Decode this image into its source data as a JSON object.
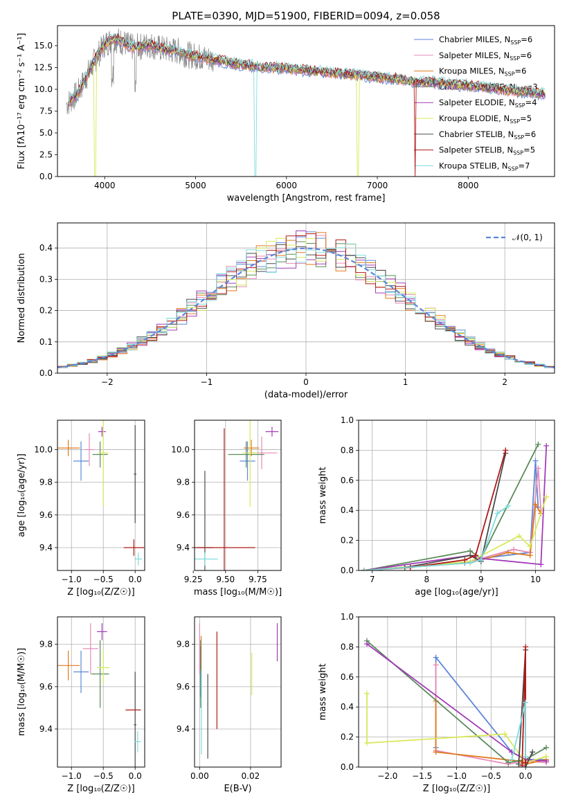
{
  "figure": {
    "title": "PLATE=0390, MJD=51900, FIBERID=0094, z=0.058"
  },
  "series_styles": [
    {
      "name": "Chabrier MILES",
      "nssp": "6",
      "color": "#5b86d8"
    },
    {
      "name": "Salpeter MILES",
      "nssp": "6",
      "color": "#e68ab8"
    },
    {
      "name": "Kroupa MILES",
      "nssp": "6",
      "color": "#e07a1c"
    },
    {
      "name": "Chabrier ELODIE",
      "nssp": "3",
      "color": "#5a8a5a"
    },
    {
      "name": "Salpeter ELODIE",
      "nssp": "4",
      "color": "#a23ab8"
    },
    {
      "name": "Kroupa ELODIE",
      "nssp": "5",
      "color": "#d8e85a"
    },
    {
      "name": "Chabrier STELIB",
      "nssp": "6",
      "color": "#4a4a4a"
    },
    {
      "name": "Salpeter STELIB",
      "nssp": "5",
      "color": "#b01818"
    },
    {
      "name": "Kroupa STELIB",
      "nssp": "7",
      "color": "#7fdcdc"
    }
  ],
  "chart_data": [
    {
      "id": "spectrum",
      "type": "line",
      "title": "PLATE=0390, MJD=51900, FIBERID=0094, z=0.058",
      "xlabel": "wavelength [Angstrom, rest frame]",
      "ylabel": "Flux [fλ10⁻¹⁷ erg cm⁻² s⁻¹ A⁻¹]",
      "xlim": [
        3480,
        8950
      ],
      "ylim": [
        0,
        17.3
      ],
      "xticks": [
        "4000",
        "5000",
        "6000",
        "7000",
        "8000"
      ],
      "yticks": [
        "0.0",
        "2.5",
        "5.0",
        "7.5",
        "10.0",
        "12.5",
        "15.0"
      ],
      "grid": false,
      "legend": "top-right",
      "data_continuum": {
        "x": [
          3600,
          3700,
          3800,
          3900,
          4000,
          4100,
          4200,
          4300,
          4400,
          4500,
          4600,
          4700,
          4800,
          4900,
          5000,
          5200,
          5400,
          5600,
          5800,
          6000,
          6200,
          6400,
          6600,
          6800,
          7000,
          7200,
          7400,
          7600,
          7800,
          8000,
          8200,
          8400,
          8600,
          8800
        ],
        "y": [
          8.5,
          9.5,
          11.5,
          13.5,
          15.2,
          15.8,
          15.4,
          14.8,
          14.9,
          15.1,
          14.7,
          14.5,
          14.4,
          14.0,
          13.8,
          13.4,
          13.0,
          12.7,
          12.5,
          12.4,
          12.2,
          12.0,
          11.8,
          11.6,
          11.4,
          11.2,
          10.9,
          10.8,
          10.6,
          10.4,
          10.2,
          9.9,
          9.7,
          9.5
        ]
      }
    },
    {
      "id": "residuals",
      "type": "line",
      "xlabel": "(data-model)/error",
      "ylabel": "Normed distribution",
      "xlim": [
        -2.5,
        2.5
      ],
      "ylim": [
        0,
        0.48
      ],
      "xticks": [
        "−2",
        "−1",
        "0",
        "1",
        "2"
      ],
      "yticks": [
        "0.0",
        "0.1",
        "0.2",
        "0.3",
        "0.4"
      ],
      "grid": true,
      "legend": "top-right",
      "reference_label": "𝒩(0, 1)",
      "reference_color": "#5b86d8"
    },
    {
      "id": "age_vs_Z",
      "type": "scatter",
      "xlabel": "Z [log₁₀(Z/Z☉)]",
      "ylabel": "age  [log₁₀(age/yr)]",
      "xlim": [
        -1.22,
        0.15
      ],
      "ylim": [
        9.26,
        10.18
      ],
      "xticks": [
        "−1.0",
        "−0.5",
        "0.0"
      ],
      "yticks": [
        "9.4",
        "9.6",
        "9.8",
        "10.0"
      ],
      "grid": true,
      "points": [
        {
          "x": -0.85,
          "y": 9.93,
          "xe": 0.12,
          "ye": 0.12
        },
        {
          "x": -0.72,
          "y": 10.0,
          "xe": 0.08,
          "ye": 0.1
        },
        {
          "x": -1.05,
          "y": 10.01,
          "xe": 0.18,
          "ye": 0.05
        },
        {
          "x": -0.55,
          "y": 9.97,
          "xe": 0.12,
          "ye": 0.08
        },
        {
          "x": -0.52,
          "y": 10.11,
          "xe": 0.06,
          "ye": 0.03
        },
        {
          "x": -0.5,
          "y": 9.98,
          "xe": 0.08,
          "ye": 0.33
        },
        {
          "x": 0.0,
          "y": 9.85,
          "xe": 0.02,
          "ye": 0.3
        },
        {
          "x": -0.02,
          "y": 9.4,
          "xe": 0.16,
          "ye": 0.05
        },
        {
          "x": 0.05,
          "y": 9.33,
          "xe": 0.06,
          "ye": 0.04
        }
      ]
    },
    {
      "id": "age_vs_mass",
      "type": "scatter",
      "xlabel": "mass [log₁₀(M/M☉)]",
      "xlim": [
        9.26,
        9.93
      ],
      "ylim": [
        9.26,
        10.18
      ],
      "xticks": [
        "9.25",
        "9.50",
        "9.75"
      ],
      "yticks": [
        "9.4",
        "9.6",
        "9.8",
        "10.0"
      ],
      "grid": true,
      "points": [
        {
          "x": 9.67,
          "y": 9.93,
          "xe": 0.06,
          "ye": 0.12
        },
        {
          "x": 9.78,
          "y": 9.98,
          "xe": 0.12,
          "ye": 0.1
        },
        {
          "x": 9.7,
          "y": 10.01,
          "xe": 0.06,
          "ye": 0.05
        },
        {
          "x": 9.66,
          "y": 9.97,
          "xe": 0.14,
          "ye": 0.08
        },
        {
          "x": 9.86,
          "y": 10.11,
          "xe": 0.05,
          "ye": 0.03
        },
        {
          "x": 9.69,
          "y": 9.98,
          "xe": 0.06,
          "ye": 0.33
        },
        {
          "x": 9.34,
          "y": 9.4,
          "xe": 0.06,
          "ye": 0.47
        },
        {
          "x": 9.49,
          "y": 9.4,
          "xe": 0.24,
          "ye": 0.73
        },
        {
          "x": 9.34,
          "y": 9.33,
          "xe": 0.1,
          "ye": 0.04
        }
      ]
    },
    {
      "id": "weight_vs_age",
      "type": "line",
      "xlabel": "age  [log₁₀(age/yr)]",
      "ylabel": "mass weight",
      "xlim": [
        6.75,
        10.35
      ],
      "ylim": [
        0,
        1.0
      ],
      "xticks": [
        "7",
        "8",
        "9",
        "10"
      ],
      "yticks": [
        "0.0",
        "0.2",
        "0.4",
        "0.6",
        "0.8",
        "1.0"
      ],
      "grid": true,
      "series": [
        {
          "x": [
            6.85,
            8.7,
            9.0,
            9.9,
            10.0,
            10.05
          ],
          "y": [
            0.0,
            0.05,
            0.08,
            0.12,
            0.73,
            0.42
          ]
        },
        {
          "x": [
            6.85,
            8.8,
            9.6,
            9.9,
            10.05,
            10.1
          ],
          "y": [
            0.0,
            0.06,
            0.14,
            0.12,
            0.68,
            0.4
          ]
        },
        {
          "x": [
            6.85,
            8.8,
            9.5,
            9.9,
            10.0,
            10.1
          ],
          "y": [
            0.0,
            0.05,
            0.12,
            0.1,
            0.44,
            0.38
          ]
        },
        {
          "x": [
            6.85,
            8.8,
            9.0,
            10.05
          ],
          "y": [
            0.0,
            0.13,
            0.08,
            0.84
          ]
        },
        {
          "x": [
            6.85,
            8.8,
            9.0,
            10.1,
            10.2
          ],
          "y": [
            0.0,
            0.1,
            0.08,
            0.04,
            0.83
          ]
        },
        {
          "x": [
            6.85,
            8.8,
            9.7,
            9.9,
            10.2
          ],
          "y": [
            0.0,
            0.06,
            0.23,
            0.16,
            0.49
          ]
        },
        {
          "x": [
            6.85,
            7.6,
            8.8,
            9.0,
            9.45
          ],
          "y": [
            0.0,
            0.02,
            0.1,
            0.06,
            0.78
          ]
        },
        {
          "x": [
            6.85,
            7.7,
            8.7,
            8.9,
            9.45
          ],
          "y": [
            0.0,
            0.02,
            0.07,
            0.1,
            0.8
          ]
        },
        {
          "x": [
            6.85,
            8.8,
            9.0,
            9.3,
            9.5
          ],
          "y": [
            0.0,
            0.05,
            0.07,
            0.38,
            0.43
          ]
        }
      ]
    },
    {
      "id": "mass_vs_Z",
      "type": "scatter",
      "xlabel": "Z [log₁₀(Z/Z☉)]",
      "ylabel": "mass [log₁₀(M/M☉)]",
      "xlim": [
        -1.22,
        0.15
      ],
      "ylim": [
        9.22,
        9.93
      ],
      "xticks": [
        "−1.0",
        "−0.5",
        "0.0"
      ],
      "yticks": [
        "9.4",
        "9.6",
        "9.8"
      ],
      "grid": true,
      "points": [
        {
          "x": -0.85,
          "y": 9.67,
          "xe": 0.12,
          "ye": 0.1
        },
        {
          "x": -0.7,
          "y": 9.78,
          "xe": 0.12,
          "ye": 0.12
        },
        {
          "x": -1.05,
          "y": 9.7,
          "xe": 0.18,
          "ye": 0.07
        },
        {
          "x": -0.55,
          "y": 9.66,
          "xe": 0.14,
          "ye": 0.16
        },
        {
          "x": -0.52,
          "y": 9.86,
          "xe": 0.08,
          "ye": 0.04
        },
        {
          "x": -0.5,
          "y": 9.69,
          "xe": 0.1,
          "ye": 0.08
        },
        {
          "x": 0.0,
          "y": 9.42,
          "xe": 0.02,
          "ye": 0.25
        },
        {
          "x": -0.03,
          "y": 9.49,
          "xe": 0.12,
          "ye": 0.0
        },
        {
          "x": 0.04,
          "y": 9.34,
          "xe": 0.05,
          "ye": 0.05
        }
      ]
    },
    {
      "id": "mass_vs_ebv",
      "type": "scatter",
      "xlabel": "E(B-V)",
      "xlim": [
        -0.002,
        0.032
      ],
      "ylim": [
        9.22,
        9.93
      ],
      "xticks": [
        "0.00",
        "0.02"
      ],
      "yticks": [
        "9.4",
        "9.6",
        "9.8"
      ],
      "grid": true,
      "points": [
        {
          "x": 0.0003,
          "y": 9.67,
          "xe": 0,
          "ye": 0.12
        },
        {
          "x": 0.0,
          "y": 9.78,
          "xe": 0,
          "ye": 0.12
        },
        {
          "x": 0.0006,
          "y": 9.7,
          "xe": 0,
          "ye": 0.14
        },
        {
          "x": 0.0004,
          "y": 9.66,
          "xe": 0,
          "ye": 0.16
        },
        {
          "x": 0.0305,
          "y": 9.81,
          "xe": 0,
          "ye": 0.09
        },
        {
          "x": 0.0205,
          "y": 9.66,
          "xe": 0,
          "ye": 0.1
        },
        {
          "x": 0.0032,
          "y": 9.46,
          "xe": 0,
          "ye": 0.2
        },
        {
          "x": 0.0068,
          "y": 9.63,
          "xe": 0,
          "ye": 0.23
        },
        {
          "x": 0.0007,
          "y": 9.48,
          "xe": 0,
          "ye": 0.2
        }
      ]
    },
    {
      "id": "weight_vs_Z",
      "type": "line",
      "xlabel": "Z [log₁₀(Z/Z☉)]",
      "ylabel": "mass weight",
      "xlim": [
        -2.42,
        0.42
      ],
      "ylim": [
        0,
        1.0
      ],
      "xticks": [
        "−2.0",
        "−1.5",
        "−1.0",
        "−0.5",
        "0.0"
      ],
      "yticks": [
        "0.0",
        "0.2",
        "0.4",
        "0.6",
        "0.8",
        "1.0"
      ],
      "grid": true,
      "series": [
        {
          "x": [
            -1.3,
            -1.3,
            -0.2,
            0.0,
            0.3
          ],
          "y": [
            0.13,
            0.73,
            0.1,
            0.05,
            0.05
          ]
        },
        {
          "x": [
            -1.3,
            -1.3,
            -0.25,
            0.0,
            0.3
          ],
          "y": [
            0.68,
            0.11,
            0.02,
            0.04,
            0.03
          ]
        },
        {
          "x": [
            -1.3,
            -1.3,
            -0.1,
            0.0,
            0.3
          ],
          "y": [
            0.44,
            0.1,
            0.04,
            0.02,
            0.05
          ]
        },
        {
          "x": [
            -2.3,
            -0.25,
            0.0,
            0.3
          ],
          "y": [
            0.84,
            0.03,
            0.05,
            0.13
          ]
        },
        {
          "x": [
            -2.3,
            -0.2,
            0.0,
            0.3
          ],
          "y": [
            0.82,
            0.1,
            0.05,
            0.04
          ]
        },
        {
          "x": [
            -2.3,
            -2.3,
            -0.3,
            0.0,
            0.3
          ],
          "y": [
            0.49,
            0.16,
            0.22,
            0.03,
            0.07
          ]
        },
        {
          "x": [
            -0.1,
            0.0,
            0.0,
            0.1
          ],
          "y": [
            0.02,
            0.78,
            0.0,
            0.1
          ]
        },
        {
          "x": [
            -0.05,
            0.0,
            0.0
          ],
          "y": [
            0.01,
            0.8,
            0.03
          ]
        },
        {
          "x": [
            -0.2,
            0.0,
            0.0
          ],
          "y": [
            0.05,
            0.43,
            0.07
          ]
        }
      ]
    }
  ]
}
